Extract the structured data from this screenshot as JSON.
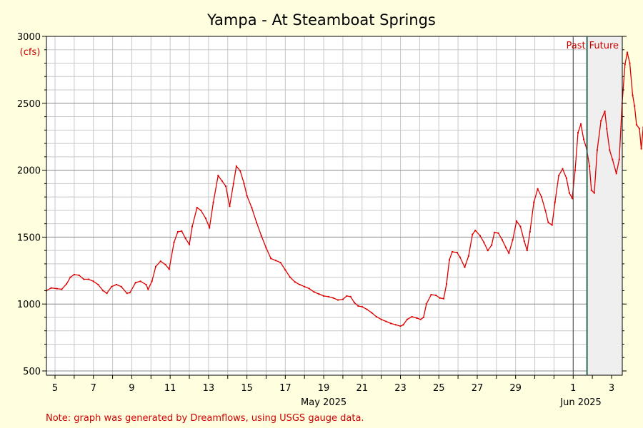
{
  "chart_data": {
    "type": "line",
    "title": "Yampa - At Steamboat Springs",
    "unit_label": "(cfs)",
    "ylim": [
      480,
      3000
    ],
    "y_ticks": [
      500,
      1000,
      1500,
      2000,
      2500,
      3000
    ],
    "x_ticks": [
      {
        "day": 5,
        "label": "5"
      },
      {
        "day": 7,
        "label": "7"
      },
      {
        "day": 9,
        "label": "9"
      },
      {
        "day": 11,
        "label": "11"
      },
      {
        "day": 13,
        "label": "13"
      },
      {
        "day": 15,
        "label": "15"
      },
      {
        "day": 17,
        "label": "17"
      },
      {
        "day": 19,
        "label": "19"
      },
      {
        "day": 21,
        "label": "21"
      },
      {
        "day": 23,
        "label": "23"
      },
      {
        "day": 25,
        "label": "25"
      },
      {
        "day": 27,
        "label": "27"
      },
      {
        "day": 29,
        "label": "29"
      },
      {
        "day": 32,
        "label": "1"
      },
      {
        "day": 34,
        "label": "3"
      }
    ],
    "month_labels": [
      {
        "day": 19,
        "label": "May 2025"
      },
      {
        "day": 32.4,
        "label": "Jun 2025"
      }
    ],
    "xlim": [
      4.55,
      34.6
    ],
    "now_day": 32.72,
    "past_label": "Past",
    "future_label": "Future",
    "series": [
      {
        "color": "#dd0000",
        "points": [
          [
            4.55,
            1100
          ],
          [
            4.8,
            1120
          ],
          [
            5.1,
            1115
          ],
          [
            5.35,
            1110
          ],
          [
            5.6,
            1150
          ],
          [
            5.8,
            1200
          ],
          [
            6.0,
            1220
          ],
          [
            6.25,
            1215
          ],
          [
            6.5,
            1185
          ],
          [
            6.75,
            1185
          ],
          [
            7.0,
            1170
          ],
          [
            7.25,
            1145
          ],
          [
            7.5,
            1100
          ],
          [
            7.7,
            1080
          ],
          [
            7.95,
            1130
          ],
          [
            8.2,
            1145
          ],
          [
            8.45,
            1130
          ],
          [
            8.75,
            1080
          ],
          [
            8.9,
            1085
          ],
          [
            9.2,
            1160
          ],
          [
            9.45,
            1170
          ],
          [
            9.75,
            1145
          ],
          [
            9.85,
            1110
          ],
          [
            10.05,
            1170
          ],
          [
            10.25,
            1280
          ],
          [
            10.5,
            1320
          ],
          [
            10.75,
            1295
          ],
          [
            10.95,
            1260
          ],
          [
            11.2,
            1460
          ],
          [
            11.4,
            1540
          ],
          [
            11.6,
            1545
          ],
          [
            11.8,
            1490
          ],
          [
            12.0,
            1445
          ],
          [
            12.15,
            1580
          ],
          [
            12.4,
            1720
          ],
          [
            12.6,
            1700
          ],
          [
            12.85,
            1640
          ],
          [
            13.05,
            1570
          ],
          [
            13.25,
            1760
          ],
          [
            13.5,
            1960
          ],
          [
            13.7,
            1920
          ],
          [
            13.9,
            1880
          ],
          [
            14.1,
            1730
          ],
          [
            14.3,
            1900
          ],
          [
            14.45,
            2030
          ],
          [
            14.65,
            1995
          ],
          [
            14.85,
            1900
          ],
          [
            15.0,
            1810
          ],
          [
            15.25,
            1720
          ],
          [
            15.5,
            1610
          ],
          [
            15.75,
            1510
          ],
          [
            16.0,
            1420
          ],
          [
            16.25,
            1340
          ],
          [
            16.5,
            1325
          ],
          [
            16.75,
            1310
          ],
          [
            17.0,
            1255
          ],
          [
            17.25,
            1200
          ],
          [
            17.5,
            1165
          ],
          [
            17.75,
            1145
          ],
          [
            18.0,
            1130
          ],
          [
            18.25,
            1115
          ],
          [
            18.5,
            1090
          ],
          [
            18.75,
            1075
          ],
          [
            19.0,
            1060
          ],
          [
            19.25,
            1055
          ],
          [
            19.5,
            1045
          ],
          [
            19.75,
            1030
          ],
          [
            20.0,
            1035
          ],
          [
            20.2,
            1060
          ],
          [
            20.4,
            1055
          ],
          [
            20.6,
            1010
          ],
          [
            20.8,
            985
          ],
          [
            21.0,
            980
          ],
          [
            21.25,
            960
          ],
          [
            21.5,
            935
          ],
          [
            21.75,
            905
          ],
          [
            22.0,
            885
          ],
          [
            22.25,
            870
          ],
          [
            22.5,
            855
          ],
          [
            22.75,
            845
          ],
          [
            23.0,
            835
          ],
          [
            23.15,
            845
          ],
          [
            23.35,
            885
          ],
          [
            23.6,
            905
          ],
          [
            23.85,
            895
          ],
          [
            24.05,
            885
          ],
          [
            24.2,
            900
          ],
          [
            24.35,
            1000
          ],
          [
            24.6,
            1070
          ],
          [
            24.85,
            1065
          ],
          [
            25.05,
            1045
          ],
          [
            25.25,
            1040
          ],
          [
            25.4,
            1150
          ],
          [
            25.55,
            1330
          ],
          [
            25.7,
            1390
          ],
          [
            25.95,
            1385
          ],
          [
            26.1,
            1350
          ],
          [
            26.35,
            1275
          ],
          [
            26.55,
            1360
          ],
          [
            26.75,
            1520
          ],
          [
            26.9,
            1550
          ],
          [
            27.15,
            1510
          ],
          [
            27.35,
            1460
          ],
          [
            27.55,
            1400
          ],
          [
            27.75,
            1440
          ],
          [
            27.9,
            1535
          ],
          [
            28.1,
            1530
          ],
          [
            28.3,
            1480
          ],
          [
            28.5,
            1420
          ],
          [
            28.65,
            1380
          ],
          [
            28.85,
            1480
          ],
          [
            29.05,
            1620
          ],
          [
            29.25,
            1580
          ],
          [
            29.45,
            1470
          ],
          [
            29.6,
            1400
          ],
          [
            29.75,
            1540
          ],
          [
            29.95,
            1760
          ],
          [
            30.15,
            1860
          ],
          [
            30.35,
            1800
          ],
          [
            30.55,
            1700
          ],
          [
            30.7,
            1610
          ],
          [
            30.9,
            1590
          ],
          [
            31.05,
            1760
          ],
          [
            31.25,
            1960
          ],
          [
            31.45,
            2010
          ],
          [
            31.65,
            1940
          ],
          [
            31.8,
            1830
          ],
          [
            31.95,
            1790
          ],
          [
            32.1,
            2000
          ],
          [
            32.25,
            2280
          ],
          [
            32.4,
            2345
          ],
          [
            32.55,
            2230
          ],
          [
            32.7,
            2160
          ],
          [
            32.85,
            2030
          ],
          [
            32.95,
            1850
          ],
          [
            33.1,
            1830
          ],
          [
            33.25,
            2150
          ],
          [
            33.45,
            2370
          ],
          [
            33.65,
            2440
          ],
          [
            33.75,
            2310
          ],
          [
            33.9,
            2150
          ],
          [
            34.05,
            2080
          ],
          [
            34.25,
            1975
          ],
          [
            34.4,
            2080
          ],
          [
            34.55,
            2500
          ],
          [
            34.7,
            2790
          ],
          [
            34.82,
            2880
          ],
          [
            34.95,
            2800
          ],
          [
            35.1,
            2560
          ],
          [
            35.2,
            2480
          ],
          [
            35.3,
            2340
          ],
          [
            35.45,
            2310
          ],
          [
            35.55,
            2160
          ],
          [
            35.65,
            2320
          ]
        ]
      }
    ],
    "note": "Note: graph was generated by Dreamflows, using USGS gauge data."
  }
}
